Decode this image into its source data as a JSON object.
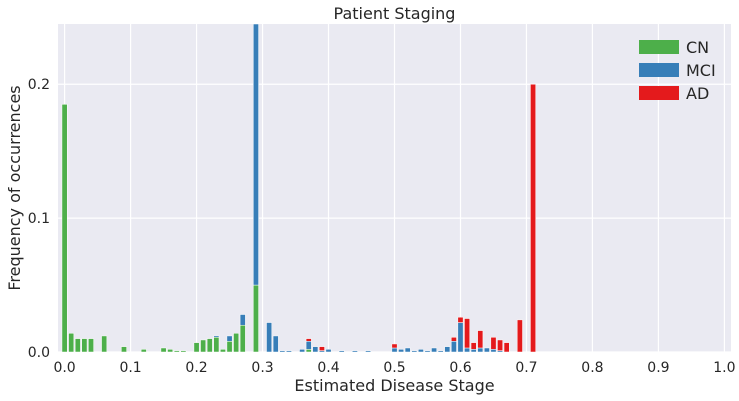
{
  "chart_data": {
    "type": "bar",
    "stacked": true,
    "title": "Patient Staging",
    "xlabel": "Estimated Disease Stage",
    "ylabel": "Frequency of occurrences",
    "xlim": [
      -0.01,
      1.01
    ],
    "ylim": [
      0,
      0.245
    ],
    "x_ticks": [
      0.0,
      0.1,
      0.2,
      0.3,
      0.4,
      0.5,
      0.6,
      0.7,
      0.8,
      0.9,
      1.0
    ],
    "x_tick_labels": [
      "0.0",
      "0.1",
      "0.2",
      "0.3",
      "0.4",
      "0.5",
      "0.6",
      "0.7",
      "0.8",
      "0.9",
      "1.0"
    ],
    "y_ticks": [
      0.0,
      0.1,
      0.2
    ],
    "y_tick_labels": [
      "0.0",
      "0.1",
      "0.2"
    ],
    "grid": true,
    "legend_position": "top-right",
    "bar_width": 0.008,
    "x": [
      0.0,
      0.01,
      0.02,
      0.03,
      0.04,
      0.05,
      0.06,
      0.07,
      0.08,
      0.09,
      0.1,
      0.11,
      0.12,
      0.13,
      0.14,
      0.15,
      0.16,
      0.17,
      0.18,
      0.19,
      0.2,
      0.21,
      0.22,
      0.23,
      0.24,
      0.25,
      0.26,
      0.27,
      0.28,
      0.29,
      0.3,
      0.31,
      0.32,
      0.33,
      0.34,
      0.35,
      0.36,
      0.37,
      0.38,
      0.39,
      0.4,
      0.41,
      0.42,
      0.43,
      0.44,
      0.45,
      0.46,
      0.47,
      0.48,
      0.49,
      0.5,
      0.51,
      0.52,
      0.53,
      0.54,
      0.55,
      0.56,
      0.57,
      0.58,
      0.59,
      0.6,
      0.61,
      0.62,
      0.63,
      0.64,
      0.65,
      0.66,
      0.67,
      0.68,
      0.69,
      0.7,
      0.71,
      0.72,
      0.73
    ],
    "series": [
      {
        "name": "CN",
        "color": "#4daf4a",
        "values": [
          0.185,
          0.014,
          0.01,
          0.01,
          0.01,
          0.0,
          0.012,
          0.0,
          0.0,
          0.004,
          0.0,
          0.0,
          0.002,
          0.0,
          0.0,
          0.003,
          0.002,
          0.001,
          0.001,
          0.0,
          0.007,
          0.009,
          0.01,
          0.011,
          0.002,
          0.008,
          0.014,
          0.02,
          0.0,
          0.05,
          0.0,
          0.0,
          0.0,
          0.0,
          0.0,
          0.0,
          0.0,
          0.002,
          0.0,
          0.0,
          0.0,
          0.0,
          0.0,
          0.0,
          0.0,
          0.0,
          0.0,
          0.0,
          0.0,
          0.0,
          0.0,
          0.0,
          0.0,
          0.0,
          0.0,
          0.0,
          0.0,
          0.0,
          0.0,
          0.0,
          0.0,
          0.0,
          0.0,
          0.0,
          0.0,
          0.0,
          0.0,
          0.0,
          0.0,
          0.0,
          0.0,
          0.0,
          0.0,
          0.0
        ]
      },
      {
        "name": "MCI",
        "color": "#377eb8",
        "values": [
          0.0,
          0.0,
          0.0,
          0.0,
          0.0,
          0.0,
          0.0,
          0.0,
          0.0,
          0.0,
          0.0,
          0.0,
          0.0,
          0.0,
          0.0,
          0.0,
          0.0,
          0.0,
          0.0,
          0.0,
          0.0,
          0.0,
          0.0,
          0.001,
          0.0,
          0.004,
          0.0,
          0.008,
          0.0,
          0.198,
          0.0,
          0.022,
          0.012,
          0.001,
          0.001,
          0.0,
          0.002,
          0.006,
          0.004,
          0.001,
          0.002,
          0.0,
          0.001,
          0.0,
          0.001,
          0.0,
          0.001,
          0.0,
          0.0,
          0.0,
          0.003,
          0.002,
          0.003,
          0.001,
          0.002,
          0.001,
          0.003,
          0.001,
          0.004,
          0.008,
          0.022,
          0.003,
          0.002,
          0.003,
          0.003,
          0.002,
          0.001,
          0.0,
          0.0,
          0.0,
          0.0,
          0.0,
          0.0,
          0.0
        ]
      },
      {
        "name": "AD",
        "color": "#e41a1c",
        "values": [
          0.0,
          0.0,
          0.0,
          0.0,
          0.0,
          0.0,
          0.0,
          0.0,
          0.0,
          0.0,
          0.0,
          0.0,
          0.0,
          0.0,
          0.0,
          0.0,
          0.0,
          0.0,
          0.0,
          0.0,
          0.0,
          0.0,
          0.0,
          0.0,
          0.0,
          0.0,
          0.0,
          0.0,
          0.0,
          0.0,
          0.0,
          0.0,
          0.0,
          0.0,
          0.0,
          0.0,
          0.0,
          0.002,
          0.0,
          0.003,
          0.0,
          0.0,
          0.0,
          0.0,
          0.0,
          0.0,
          0.0,
          0.0,
          0.0,
          0.0,
          0.003,
          0.0,
          0.0,
          0.0,
          0.0,
          0.0,
          0.0,
          0.0,
          0.0,
          0.003,
          0.004,
          0.022,
          0.005,
          0.013,
          0.0,
          0.009,
          0.008,
          0.007,
          0.0,
          0.024,
          0.0,
          0.2,
          0.0,
          0.0
        ]
      }
    ]
  }
}
